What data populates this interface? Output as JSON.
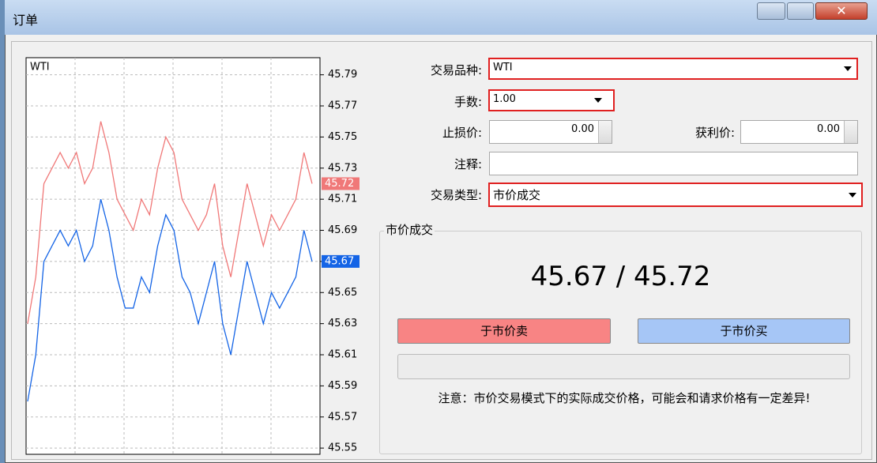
{
  "window": {
    "title": "订单"
  },
  "chart_data": {
    "type": "line",
    "title": "WTI",
    "ylim": [
      45.546,
      45.801
    ],
    "yticks": [
      45.79,
      45.77,
      45.75,
      45.73,
      45.71,
      45.69,
      45.67,
      45.65,
      45.63,
      45.61,
      45.59,
      45.57,
      45.55
    ],
    "grid": true,
    "series": [
      {
        "color": "#f07878",
        "values": [
          45.63,
          45.66,
          45.72,
          45.73,
          45.74,
          45.73,
          45.74,
          45.72,
          45.73,
          45.76,
          45.74,
          45.71,
          45.7,
          45.69,
          45.71,
          45.7,
          45.73,
          45.75,
          45.74,
          45.71,
          45.7,
          45.69,
          45.7,
          45.72,
          45.68,
          45.66,
          45.69,
          45.72,
          45.7,
          45.68,
          45.7,
          45.69,
          45.7,
          45.71,
          45.74,
          45.72
        ]
      },
      {
        "color": "#1464e6",
        "values": [
          45.58,
          45.61,
          45.67,
          45.68,
          45.69,
          45.68,
          45.69,
          45.67,
          45.68,
          45.71,
          45.69,
          45.66,
          45.64,
          45.64,
          45.66,
          45.65,
          45.68,
          45.7,
          45.69,
          45.66,
          45.65,
          45.63,
          45.65,
          45.67,
          45.63,
          45.61,
          45.64,
          45.67,
          45.65,
          45.63,
          45.65,
          45.64,
          45.65,
          45.66,
          45.69,
          45.67
        ]
      }
    ],
    "ask": 45.72,
    "bid": 45.67
  },
  "form": {
    "symbol": {
      "label": "交易品种:",
      "value": "WTI"
    },
    "volume": {
      "label": "手数:",
      "value": "1.00"
    },
    "stop_loss": {
      "label": "止损价:",
      "value": "0.00"
    },
    "take_profit": {
      "label": "获利价:",
      "value": "0.00"
    },
    "comment": {
      "label": "注释:"
    },
    "order_type": {
      "label": "交易类型:",
      "value": "市价成交"
    }
  },
  "market": {
    "group_title": "市价成交",
    "price_display": "45.67 / 45.72",
    "sell_button": "于市价卖",
    "buy_button": "于市价买",
    "note": "注意：市价交易模式下的实际成交价格，可能会和请求价格有一定差异!"
  }
}
